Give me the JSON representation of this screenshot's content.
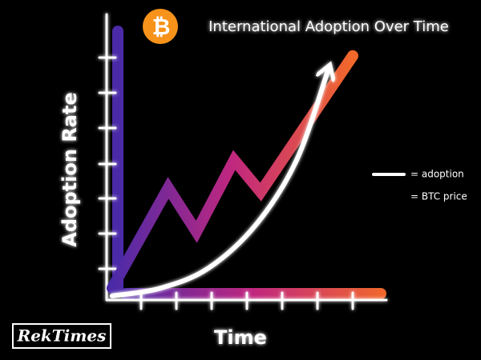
{
  "chart_data": {
    "type": "line",
    "title": "International Adoption Over Time",
    "icon": "₿",
    "ylabel": "Adoption Rate",
    "xlabel": "Time",
    "brand": "RekTimes",
    "xlim": [
      0,
      8.5
    ],
    "ylim": [
      0,
      8
    ],
    "series": [
      {
        "name": "= adoption",
        "color": "#ffffff",
        "x": [
          0.18,
          1.55,
          2.91,
          4.27,
          5.41,
          6.32
        ],
        "values": [
          0.23,
          0.45,
          1.02,
          2.27,
          4.09,
          6.7
        ]
      },
      {
        "name": "= BTC price",
        "color": "#f2682a",
        "x": [
          0.18,
          1.77,
          2.57,
          3.64,
          4.39,
          7.0
        ],
        "values": [
          0.45,
          3.3,
          2.05,
          4.09,
          3.18,
          7.05
        ]
      }
    ]
  }
}
